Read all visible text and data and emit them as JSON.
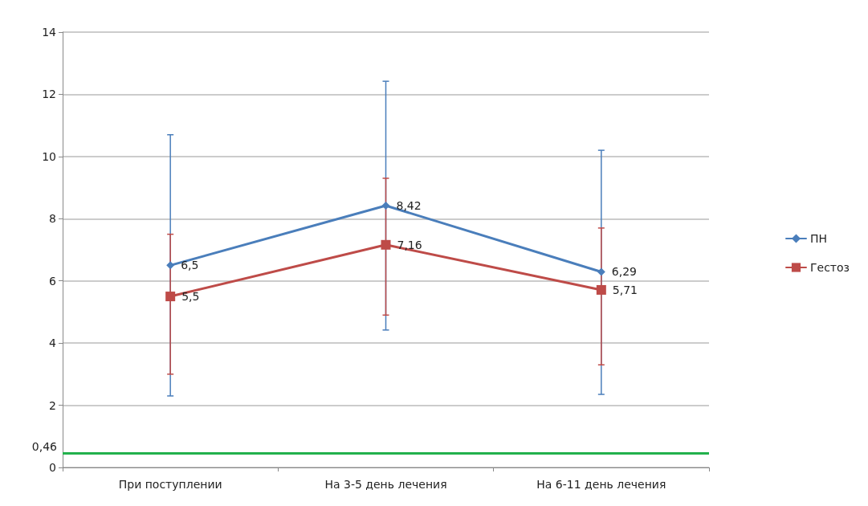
{
  "chart_data": {
    "type": "line",
    "categories": [
      "При поступлении",
      "На 3-5 день лечения",
      "На 6-11 день лечения"
    ],
    "series": [
      {
        "name": "ПН",
        "color": "#4a7ebb",
        "marker": "diamond",
        "values": [
          6.5,
          8.42,
          6.29
        ],
        "value_labels": [
          "6,5",
          "8,42",
          "6,29"
        ],
        "errors": [
          [
            2.3,
            10.7
          ],
          [
            4.42,
            12.42
          ],
          [
            2.35,
            10.2
          ]
        ]
      },
      {
        "name": "Гестоз",
        "color": "#be4b48",
        "marker": "square",
        "values": [
          5.5,
          7.16,
          5.71
        ],
        "value_labels": [
          "5,5",
          "7,16",
          "5,71"
        ],
        "errors": [
          [
            3.0,
            7.5
          ],
          [
            4.9,
            9.3
          ],
          [
            3.3,
            7.7
          ]
        ]
      }
    ],
    "ylim": [
      0,
      14
    ],
    "yticks": [
      0,
      2,
      4,
      6,
      8,
      10,
      12,
      14
    ],
    "grid": "y",
    "legend": "right",
    "ref_lines": [
      {
        "axis": "y",
        "value": 0.46,
        "label": "0,46",
        "color": "#22b14c"
      }
    ]
  }
}
